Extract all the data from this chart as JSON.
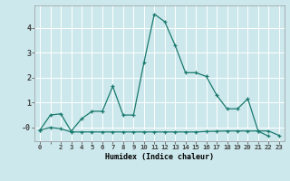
{
  "xlabel": "Humidex (Indice chaleur)",
  "background_color": "#cce8ec",
  "grid_color": "#ffffff",
  "line_color": "#1a7a6e",
  "xlim": [
    -0.5,
    23.5
  ],
  "ylim": [
    -0.55,
    4.9
  ],
  "xtick_positions": [
    0,
    2,
    3,
    4,
    5,
    6,
    7,
    8,
    9,
    10,
    11,
    12,
    13,
    14,
    15,
    16,
    17,
    18,
    19,
    20,
    21,
    22,
    23
  ],
  "xtick_labels": [
    "0",
    "2",
    "3",
    "4",
    "5",
    "6",
    "7",
    "8",
    "9",
    "10",
    "11",
    "12",
    "13",
    "14",
    "15",
    "16",
    "17",
    "18",
    "19",
    "20",
    "21",
    "22",
    "23"
  ],
  "ytick_values": [
    0,
    1,
    2,
    3,
    4
  ],
  "ytick_labels": [
    "-0",
    "1",
    "2",
    "3",
    "4"
  ],
  "line1_x": [
    0,
    1,
    2,
    3,
    4,
    5,
    6,
    7,
    8,
    9,
    10,
    11,
    12,
    13,
    14,
    15,
    16,
    17,
    18,
    19,
    20,
    21,
    22
  ],
  "line1_y": [
    -0.1,
    0.5,
    0.55,
    -0.15,
    0.35,
    0.65,
    0.65,
    1.65,
    0.5,
    0.5,
    2.6,
    4.55,
    4.25,
    3.3,
    2.2,
    2.2,
    2.05,
    1.3,
    0.75,
    0.75,
    1.15,
    -0.15,
    -0.35
  ],
  "line2_x": [
    0,
    1,
    2,
    3,
    4,
    5,
    6,
    7,
    8,
    9,
    10,
    11,
    12,
    13,
    14,
    15,
    16,
    17,
    18,
    19,
    20,
    21,
    22,
    23
  ],
  "line2_y": [
    -0.1,
    0.0,
    -0.05,
    -0.18,
    -0.18,
    -0.18,
    -0.18,
    -0.18,
    -0.18,
    -0.18,
    -0.18,
    -0.18,
    -0.18,
    -0.18,
    -0.18,
    -0.18,
    -0.16,
    -0.15,
    -0.14,
    -0.14,
    -0.14,
    -0.14,
    -0.14,
    -0.32
  ]
}
